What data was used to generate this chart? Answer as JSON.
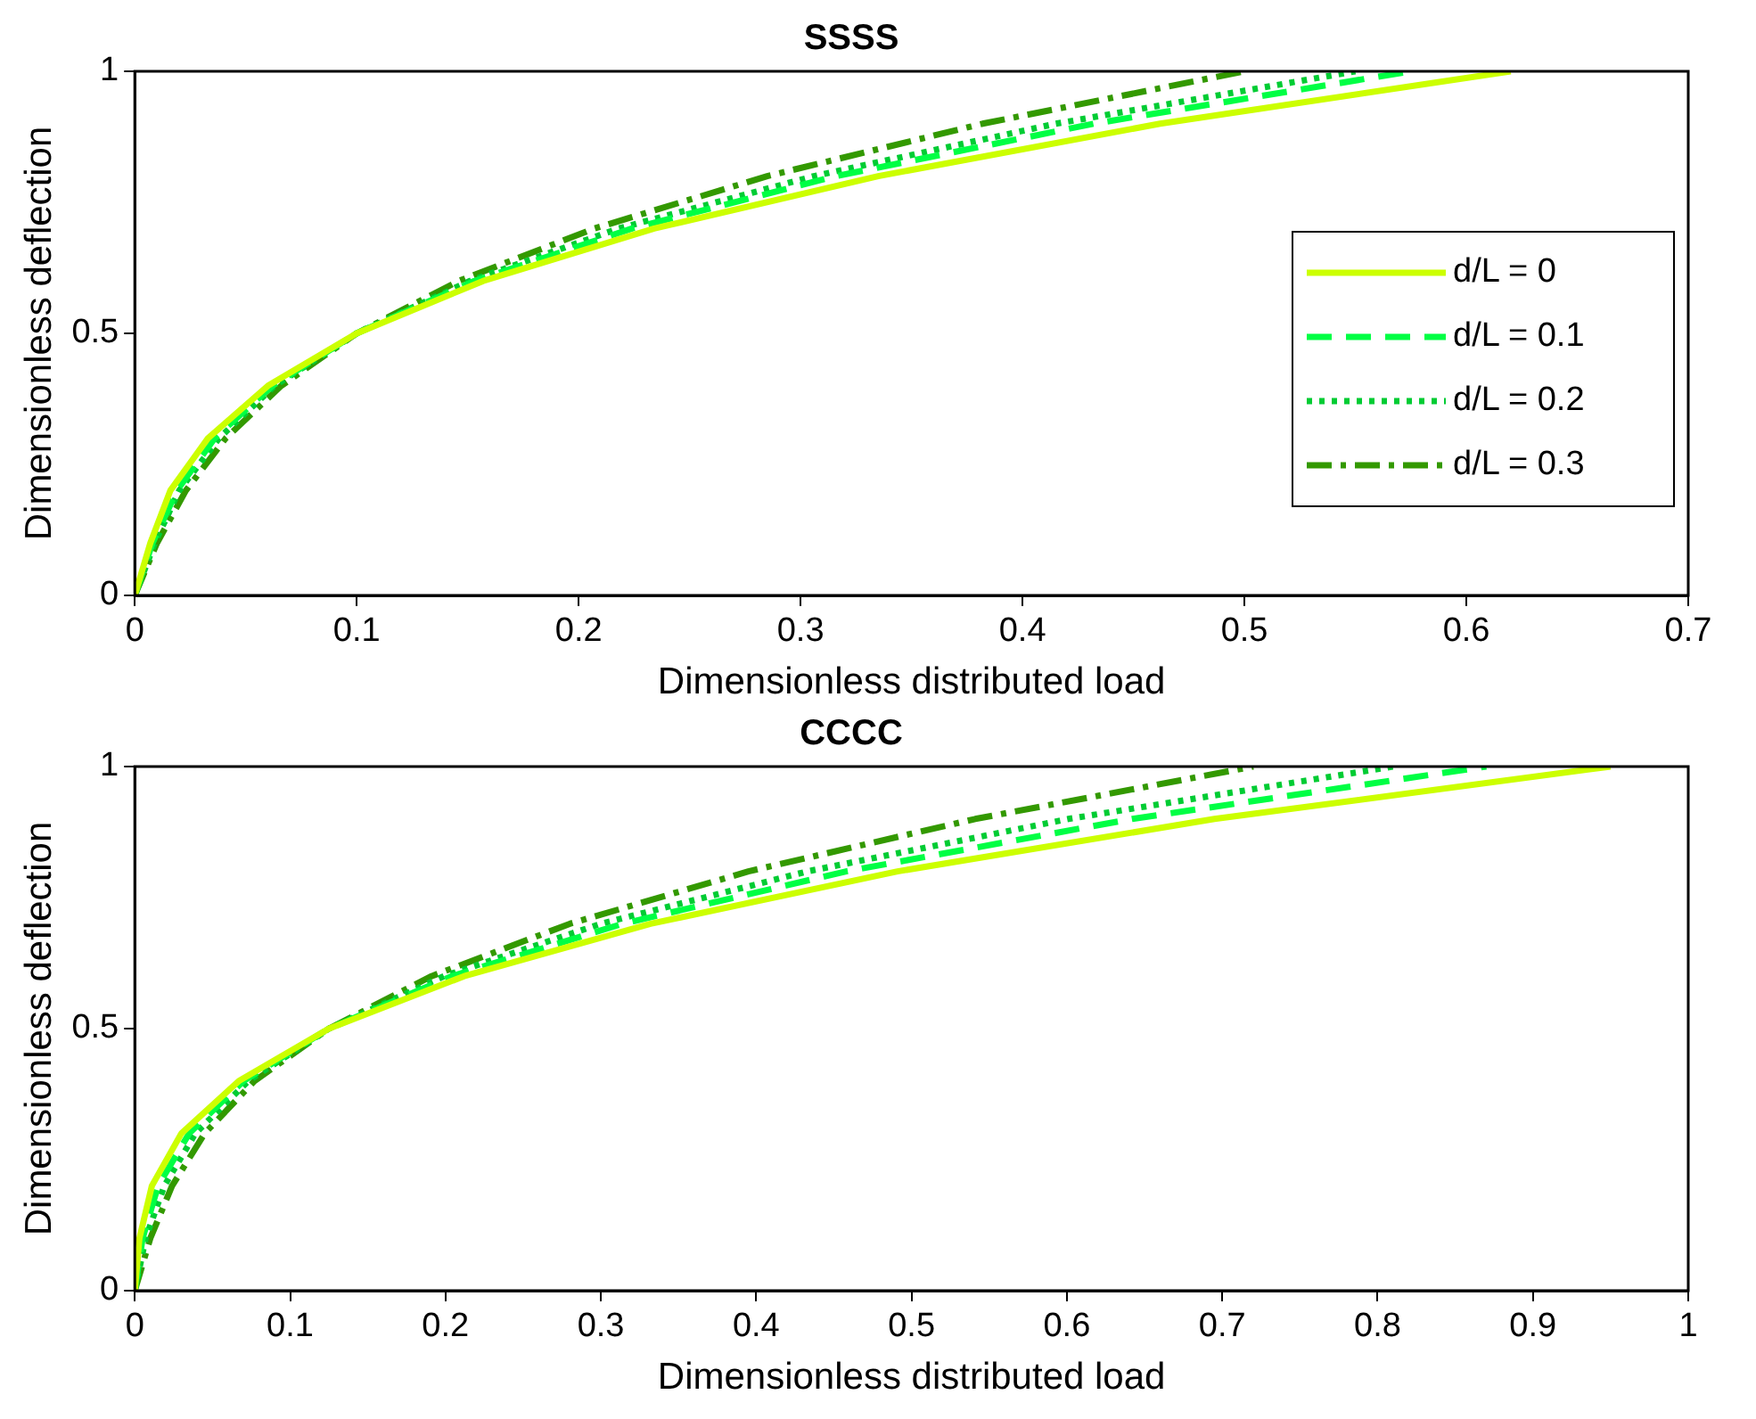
{
  "chart_data": [
    {
      "type": "line",
      "title": "SSSS",
      "xlabel": "Dimensionless distributed load",
      "ylabel": "Dimensionless deflection",
      "xlim": [
        0,
        0.7
      ],
      "xticks": [
        0,
        0.1,
        0.2,
        0.3,
        0.4,
        0.5,
        0.6,
        0.7
      ],
      "ylim": [
        0,
        1
      ],
      "yticks": [
        0,
        0.5,
        1
      ],
      "grid": false,
      "legend": "right",
      "marker": "none",
      "series": [
        {
          "name": "d/L = 0",
          "color": "#ccff00",
          "line_style": "solid",
          "x": [
            0,
            0.007,
            0.016,
            0.033,
            0.06,
            0.1,
            0.157,
            0.234,
            0.335,
            0.462,
            0.62
          ],
          "values": [
            0,
            0.1,
            0.2,
            0.3,
            0.4,
            0.5,
            0.6,
            0.7,
            0.8,
            0.9,
            1
          ]
        },
        {
          "name": "d/L = 0.1",
          "color": "#00ff44",
          "line_style": "dashed",
          "x": [
            0,
            0.008,
            0.019,
            0.036,
            0.062,
            0.1,
            0.153,
            0.224,
            0.316,
            0.432,
            0.575
          ],
          "values": [
            0,
            0.1,
            0.2,
            0.3,
            0.4,
            0.5,
            0.6,
            0.7,
            0.8,
            0.9,
            1
          ]
        },
        {
          "name": "d/L = 0.2",
          "color": "#00cc33",
          "line_style": "dotted",
          "x": [
            0,
            0.009,
            0.02,
            0.038,
            0.063,
            0.1,
            0.151,
            0.218,
            0.306,
            0.415,
            0.55
          ],
          "values": [
            0,
            0.1,
            0.2,
            0.3,
            0.4,
            0.5,
            0.6,
            0.7,
            0.8,
            0.9,
            1
          ]
        },
        {
          "name": "d/L = 0.3",
          "color": "#339900",
          "line_style": "dashdot",
          "x": [
            0,
            0.01,
            0.023,
            0.041,
            0.066,
            0.1,
            0.146,
            0.207,
            0.285,
            0.382,
            0.5
          ],
          "values": [
            0,
            0.1,
            0.2,
            0.3,
            0.4,
            0.5,
            0.6,
            0.7,
            0.8,
            0.9,
            1
          ]
        }
      ]
    },
    {
      "type": "line",
      "title": "CCCC",
      "xlabel": "Dimensionless distributed load",
      "ylabel": "Dimensionless deflection",
      "xlim": [
        0,
        1
      ],
      "xticks": [
        0,
        0.1,
        0.2,
        0.3,
        0.4,
        0.5,
        0.6,
        0.7,
        0.8,
        0.9,
        1
      ],
      "ylim": [
        0,
        1
      ],
      "yticks": [
        0,
        0.5,
        1
      ],
      "grid": false,
      "legend": false,
      "marker": "none",
      "series": [
        {
          "color": "#ccff00",
          "line_style": "solid",
          "x": [
            0,
            0.003,
            0.011,
            0.03,
            0.067,
            0.125,
            0.212,
            0.332,
            0.491,
            0.695,
            0.95
          ],
          "values": [
            0,
            0.1,
            0.2,
            0.3,
            0.4,
            0.5,
            0.6,
            0.7,
            0.8,
            0.9,
            1
          ]
        },
        {
          "color": "#00ff44",
          "line_style": "dashed",
          "x": [
            0,
            0.005,
            0.015,
            0.035,
            0.07,
            0.125,
            0.204,
            0.314,
            0.458,
            0.642,
            0.87
          ],
          "values": [
            0,
            0.1,
            0.2,
            0.3,
            0.4,
            0.5,
            0.6,
            0.7,
            0.8,
            0.9,
            1
          ]
        },
        {
          "color": "#00cc33",
          "line_style": "dotted",
          "x": [
            0,
            0.007,
            0.019,
            0.039,
            0.073,
            0.125,
            0.199,
            0.3,
            0.433,
            0.601,
            0.81
          ],
          "values": [
            0,
            0.1,
            0.2,
            0.3,
            0.4,
            0.5,
            0.6,
            0.7,
            0.8,
            0.9,
            1
          ]
        },
        {
          "color": "#339900",
          "line_style": "dashdot",
          "x": [
            0,
            0.01,
            0.024,
            0.045,
            0.077,
            0.125,
            0.191,
            0.28,
            0.395,
            0.541,
            0.72
          ],
          "values": [
            0,
            0.1,
            0.2,
            0.3,
            0.4,
            0.5,
            0.6,
            0.7,
            0.8,
            0.9,
            1
          ]
        }
      ]
    }
  ]
}
